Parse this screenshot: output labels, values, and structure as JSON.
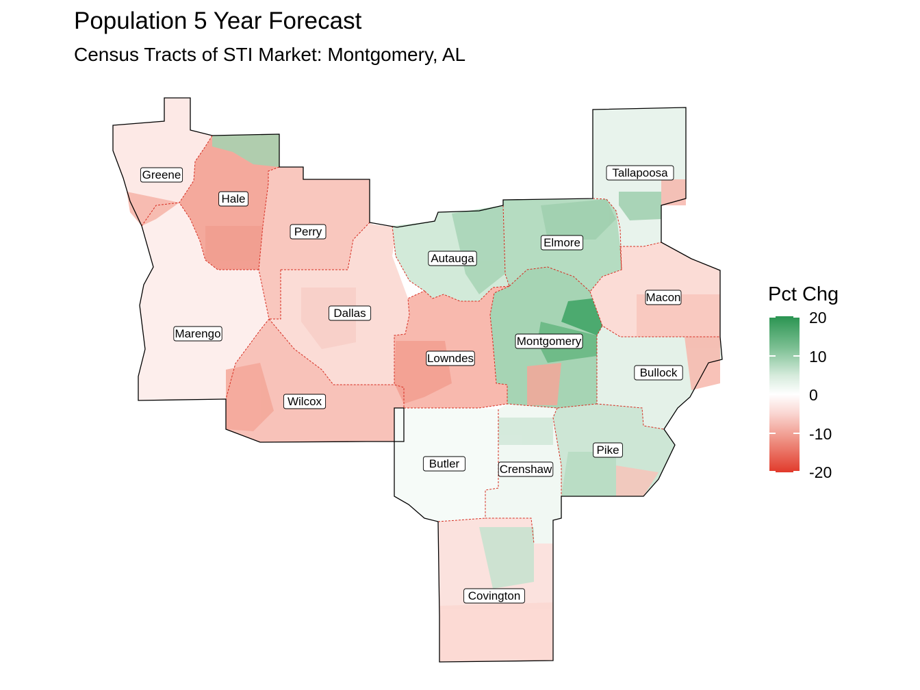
{
  "title": "Population 5 Year Forecast",
  "subtitle": "Census Tracts of STI Market: Montgomery, AL",
  "legend": {
    "title": "Pct Chg",
    "labels": [
      "20",
      "10",
      "0",
      "-10",
      "-20"
    ],
    "colors": {
      "high": "#2a9451",
      "mid": "#ffffff",
      "low": "#e13a2b"
    }
  },
  "counties": [
    {
      "name": "Greene",
      "fill": "#fde9e6"
    },
    {
      "name": "Hale",
      "fill": "#f4a99c"
    },
    {
      "name": "Perry",
      "fill": "#f9c7be"
    },
    {
      "name": "Marengo",
      "fill": "#fdeeec"
    },
    {
      "name": "Dallas",
      "fill": "#fbdcd6"
    },
    {
      "name": "Wilcox",
      "fill": "#f8c2b9"
    },
    {
      "name": "Autauga",
      "fill": "#d2ead9"
    },
    {
      "name": "Elmore",
      "fill": "#b5dcc1"
    },
    {
      "name": "Tallapoosa",
      "fill": "#e8f3ec"
    },
    {
      "name": "Macon",
      "fill": "#fbdcd6"
    },
    {
      "name": "Montgomery",
      "fill": "#a6d4b4"
    },
    {
      "name": "Lowndes",
      "fill": "#f8b9ae"
    },
    {
      "name": "Bullock",
      "fill": "#e4f1e8"
    },
    {
      "name": "Butler",
      "fill": "#f6fbf8"
    },
    {
      "name": "Crenshaw",
      "fill": "#f1f8f3"
    },
    {
      "name": "Pike",
      "fill": "#cde6d5"
    },
    {
      "name": "Covington",
      "fill": "#fbe2de"
    }
  ]
}
